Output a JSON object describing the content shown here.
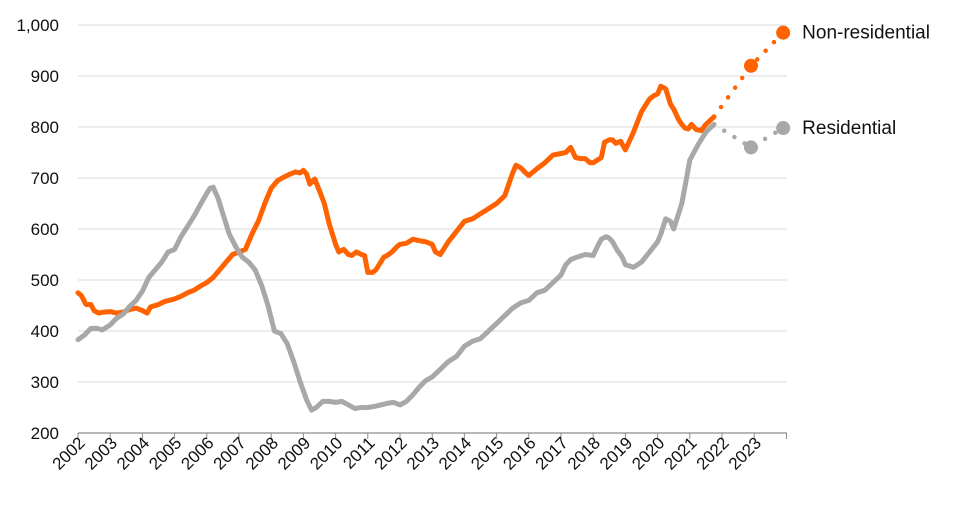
{
  "chart_data": {
    "type": "line",
    "title": "",
    "xlabel": "",
    "ylabel": "",
    "ylim": [
      200,
      1000
    ],
    "yticks": [
      200,
      300,
      400,
      500,
      600,
      700,
      800,
      900,
      1000
    ],
    "ytick_labels": [
      "200",
      "300",
      "400",
      "500",
      "600",
      "700",
      "800",
      "900",
      "1,000"
    ],
    "xlim": [
      2002,
      2024.1
    ],
    "xticks": [
      2002,
      2003,
      2004,
      2005,
      2006,
      2007,
      2008,
      2009,
      2010,
      2011,
      2012,
      2013,
      2014,
      2015,
      2016,
      2017,
      2018,
      2019,
      2020,
      2021,
      2022,
      2023
    ],
    "xtick_labels": [
      "2002",
      "2003",
      "2004",
      "2005",
      "2006",
      "2007",
      "2008",
      "2009",
      "2010",
      "2011",
      "2012",
      "2013",
      "2014",
      "2015",
      "2016",
      "2017",
      "2018",
      "2019",
      "2020",
      "2021",
      "2022",
      "2023"
    ],
    "grid": "horizontal",
    "series": [
      {
        "name": "Non-residential",
        "color": "#FF6200",
        "x": [
          2002.0,
          2002.1,
          2002.25,
          2002.4,
          2002.5,
          2002.65,
          2002.8,
          2003.0,
          2003.2,
          2003.4,
          2003.6,
          2003.8,
          2004.0,
          2004.15,
          2004.25,
          2004.5,
          2004.7,
          2005.0,
          2005.2,
          2005.4,
          2005.6,
          2005.8,
          2006.0,
          2006.2,
          2006.4,
          2006.6,
          2006.8,
          2007.0,
          2007.2,
          2007.4,
          2007.6,
          2007.8,
          2008.0,
          2008.2,
          2008.4,
          2008.6,
          2008.75,
          2008.9,
          2009.0,
          2009.1,
          2009.2,
          2009.35,
          2009.5,
          2009.65,
          2009.8,
          2010.0,
          2010.1,
          2010.25,
          2010.4,
          2010.5,
          2010.65,
          2010.8,
          2010.9,
          2011.0,
          2011.15,
          2011.25,
          2011.5,
          2011.6,
          2011.75,
          2011.9,
          2012.0,
          2012.2,
          2012.4,
          2012.6,
          2012.8,
          2013.0,
          2013.1,
          2013.25,
          2013.5,
          2013.75,
          2014.0,
          2014.25,
          2014.5,
          2014.75,
          2015.0,
          2015.25,
          2015.5,
          2015.6,
          2015.75,
          2015.9,
          2016.0,
          2016.25,
          2016.5,
          2016.75,
          2017.0,
          2017.15,
          2017.3,
          2017.45,
          2017.6,
          2017.75,
          2017.9,
          2018.0,
          2018.25,
          2018.35,
          2018.5,
          2018.6,
          2018.7,
          2018.85,
          2019.0,
          2019.25,
          2019.5,
          2019.65,
          2019.75,
          2019.9,
          2020.0,
          2020.1,
          2020.25,
          2020.4,
          2020.5,
          2020.65,
          2020.75,
          2020.85,
          2020.95,
          2021.05,
          2021.2,
          2021.35,
          2021.5,
          2021.75
        ],
        "values": [
          475,
          470,
          452,
          452,
          440,
          435,
          437,
          438,
          435,
          437,
          442,
          445,
          440,
          435,
          447,
          452,
          458,
          463,
          468,
          475,
          480,
          488,
          495,
          505,
          520,
          535,
          550,
          555,
          560,
          590,
          615,
          650,
          680,
          695,
          702,
          708,
          712,
          710,
          715,
          708,
          688,
          698,
          675,
          650,
          610,
          570,
          555,
          560,
          550,
          548,
          555,
          550,
          548,
          515,
          515,
          520,
          545,
          548,
          555,
          565,
          570,
          572,
          580,
          577,
          575,
          570,
          555,
          550,
          575,
          595,
          615,
          620,
          630,
          640,
          650,
          665,
          710,
          725,
          720,
          710,
          705,
          718,
          730,
          745,
          748,
          750,
          760,
          740,
          738,
          738,
          730,
          730,
          740,
          770,
          775,
          775,
          768,
          772,
          755,
          790,
          830,
          845,
          855,
          862,
          865,
          880,
          875,
          845,
          835,
          815,
          805,
          798,
          796,
          805,
          795,
          793,
          805,
          820
        ]
      },
      {
        "name": "Residential",
        "color": "#A8A8A8",
        "x": [
          2002.0,
          2002.2,
          2002.4,
          2002.6,
          2002.75,
          2003.0,
          2003.2,
          2003.4,
          2003.6,
          2003.8,
          2004.0,
          2004.2,
          2004.4,
          2004.6,
          2004.8,
          2005.0,
          2005.2,
          2005.4,
          2005.6,
          2005.8,
          2006.0,
          2006.1,
          2006.2,
          2006.35,
          2006.5,
          2006.7,
          2006.9,
          2007.1,
          2007.3,
          2007.5,
          2007.7,
          2007.9,
          2008.1,
          2008.3,
          2008.5,
          2008.7,
          2008.9,
          2009.1,
          2009.25,
          2009.4,
          2009.6,
          2009.8,
          2010.0,
          2010.2,
          2010.4,
          2010.6,
          2010.8,
          2011.0,
          2011.2,
          2011.4,
          2011.6,
          2011.8,
          2012.0,
          2012.2,
          2012.4,
          2012.6,
          2012.8,
          2013.0,
          2013.25,
          2013.5,
          2013.75,
          2014.0,
          2014.25,
          2014.5,
          2014.75,
          2015.0,
          2015.25,
          2015.5,
          2015.75,
          2016.0,
          2016.25,
          2016.5,
          2016.75,
          2017.0,
          2017.15,
          2017.3,
          2017.5,
          2017.75,
          2018.0,
          2018.15,
          2018.25,
          2018.4,
          2018.5,
          2018.6,
          2018.75,
          2018.9,
          2019.0,
          2019.25,
          2019.5,
          2019.75,
          2020.0,
          2020.1,
          2020.25,
          2020.4,
          2020.5,
          2020.75,
          2020.9,
          2021.0,
          2021.25,
          2021.5,
          2021.75
        ],
        "values": [
          383,
          392,
          405,
          405,
          402,
          412,
          425,
          433,
          448,
          460,
          478,
          505,
          520,
          535,
          555,
          560,
          585,
          605,
          625,
          648,
          670,
          680,
          682,
          660,
          630,
          590,
          565,
          545,
          535,
          520,
          490,
          450,
          400,
          395,
          375,
          340,
          300,
          265,
          245,
          250,
          262,
          262,
          260,
          262,
          255,
          248,
          250,
          250,
          252,
          255,
          258,
          260,
          255,
          262,
          275,
          290,
          303,
          310,
          325,
          340,
          350,
          370,
          380,
          385,
          400,
          415,
          430,
          445,
          455,
          460,
          475,
          480,
          495,
          510,
          530,
          540,
          545,
          550,
          548,
          568,
          580,
          585,
          582,
          575,
          558,
          545,
          530,
          525,
          535,
          555,
          575,
          590,
          620,
          615,
          600,
          650,
          700,
          735,
          765,
          790,
          805
        ]
      }
    ],
    "forecast": [
      {
        "name": "Non-residential",
        "color": "#FF6200",
        "x": [
          2021.75,
          2022.9,
          2023.9
        ],
        "values": [
          820,
          920,
          985
        ]
      },
      {
        "name": "Residential",
        "color": "#A8A8A8",
        "x": [
          2021.75,
          2022.9,
          2023.9
        ],
        "values": [
          805,
          760,
          798
        ]
      }
    ]
  }
}
